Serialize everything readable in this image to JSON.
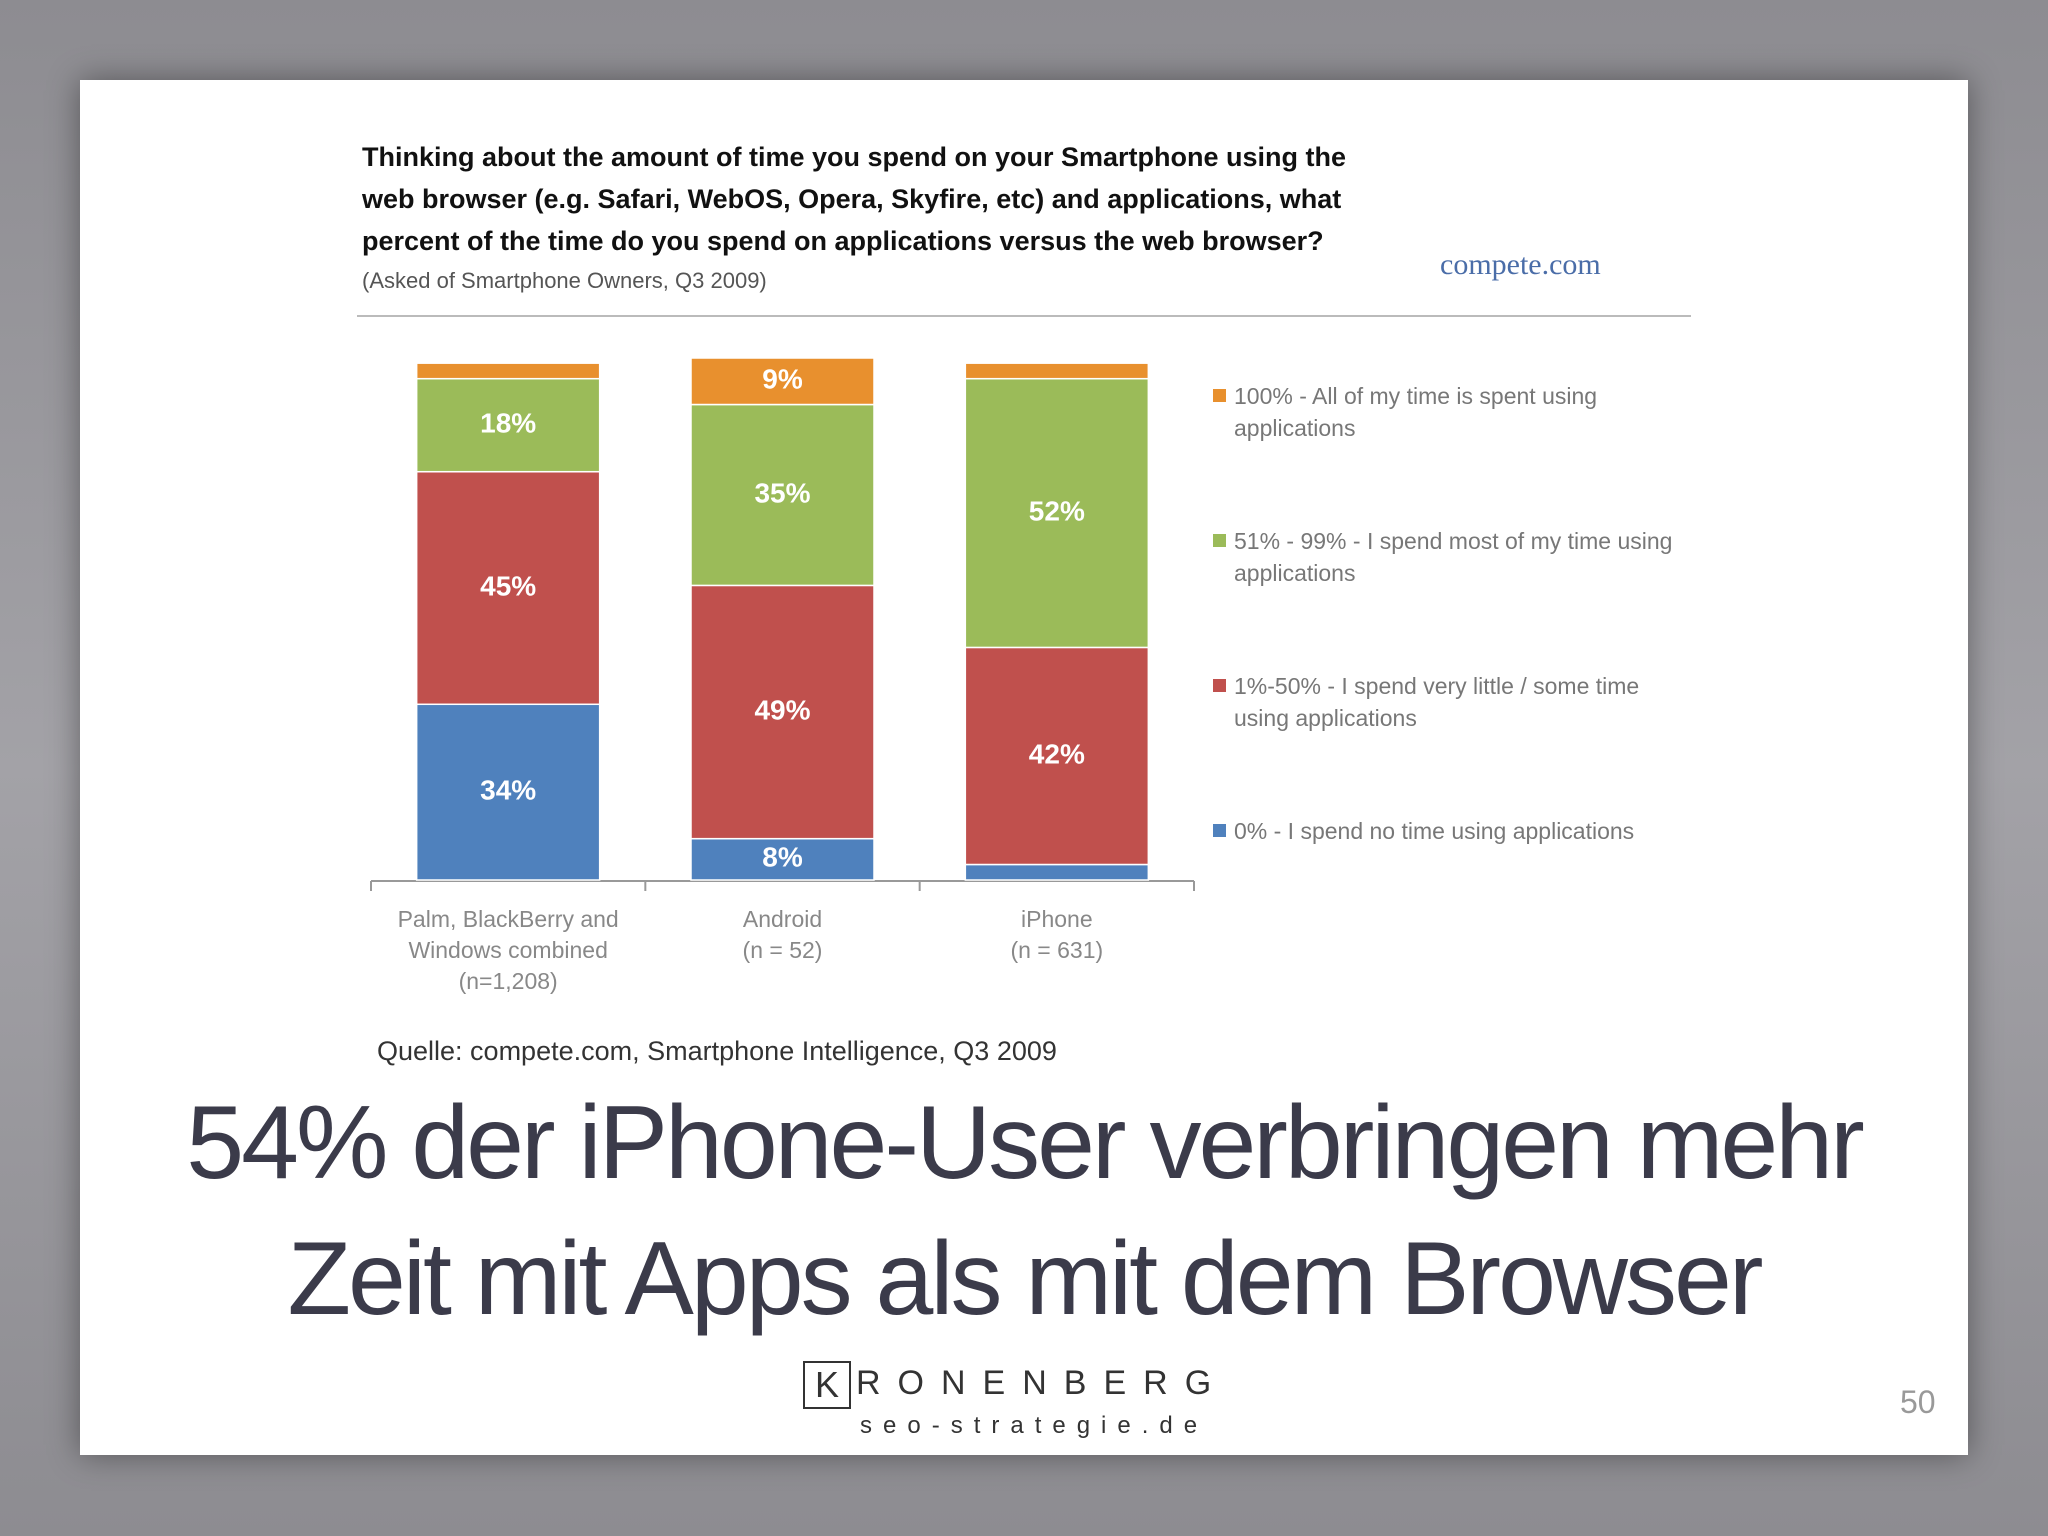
{
  "chart_data": {
    "type": "stacked_bar",
    "title": "Thinking about the amount of time you spend on your Smartphone using the web browser (e.g. Safari, WebOS, Opera, Skyfire, etc) and applications, what percent of the time do you spend on applications versus the web browser?",
    "subtitle": "(Asked of Smartphone Owners, Q3 2009)",
    "brand": "compete.com",
    "categories": [
      "Palm, BlackBerry and\nWindows combined\n(n=1,208)",
      "Android\n(n = 52)",
      "iPhone\n(n = 631)"
    ],
    "series": [
      {
        "name": "0% - I spend no time using applications",
        "color": "#4f81bd",
        "values": [
          34,
          8,
          3
        ],
        "value_labels": [
          "34%",
          "8%",
          null
        ]
      },
      {
        "name": "1%-50% - I spend very little / some time using applications",
        "color": "#c0504d",
        "values": [
          45,
          49,
          42
        ],
        "value_labels": [
          "45%",
          "49%",
          "42%"
        ]
      },
      {
        "name": "51% - 99% - I spend most of my time using applications",
        "color": "#9bbb59",
        "values": [
          18,
          35,
          52
        ],
        "value_labels": [
          "18%",
          "35%",
          "52%"
        ]
      },
      {
        "name": "100% - All of my time is spent using applications",
        "color": "#e8902e",
        "values": [
          3,
          9,
          3
        ],
        "value_labels": [
          null,
          "9%",
          null
        ]
      }
    ],
    "source": "Quelle: compete.com, Smartphone Intelligence, Q3 2009"
  },
  "slide": {
    "headline": "54% der iPhone-User verbringen mehr Zeit mit Apps als mit dem Browser",
    "logo_initial": "K",
    "logo_name": "RONENBERG",
    "logo_domain": "seo-strategie.de",
    "page_number": "50"
  }
}
